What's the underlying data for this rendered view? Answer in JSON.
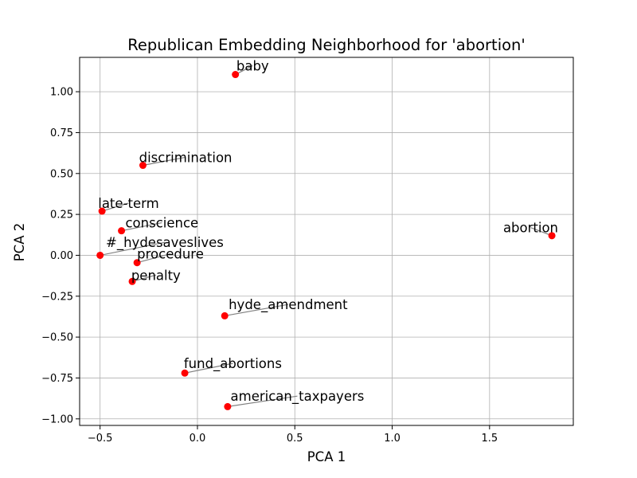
{
  "chart_data": {
    "type": "scatter",
    "title": "Republican Embedding Neighborhood for 'abortion'",
    "xlabel": "PCA 1",
    "ylabel": "PCA 2",
    "xlim": [
      -0.605,
      1.93
    ],
    "ylim": [
      -1.04,
      1.21
    ],
    "xticks": [
      -0.5,
      0.0,
      0.5,
      1.0,
      1.5
    ],
    "yticks": [
      -1.0,
      -0.75,
      -0.5,
      -0.25,
      0.0,
      0.25,
      0.5,
      0.75,
      1.0
    ],
    "xtick_labels": [
      "−0.5",
      "0.0",
      "0.5",
      "1.0",
      "1.5"
    ],
    "ytick_labels": [
      "−1.00",
      "−0.75",
      "−0.50",
      "−0.25",
      "0.00",
      "0.25",
      "0.50",
      "0.75",
      "1.00"
    ],
    "grid": true,
    "point_color": "#ff0000",
    "connector_color": "#808080",
    "points": [
      {
        "label": "baby",
        "x": 0.195,
        "y": 1.105,
        "lx": 0.2,
        "ly": 1.13
      },
      {
        "label": "discrimination",
        "x": -0.28,
        "y": 0.55,
        "lx": -0.3,
        "ly": 0.57
      },
      {
        "label": "late-term",
        "x": -0.49,
        "y": 0.27,
        "lx": -0.51,
        "ly": 0.29
      },
      {
        "label": "conscience",
        "x": -0.39,
        "y": 0.15,
        "lx": -0.37,
        "ly": 0.17
      },
      {
        "label": "#_hydesaveslives",
        "x": -0.5,
        "y": 0.0,
        "lx": -0.47,
        "ly": 0.05
      },
      {
        "label": "procedure",
        "x": -0.31,
        "y": -0.045,
        "lx": -0.31,
        "ly": -0.02
      },
      {
        "label": "penalty",
        "x": -0.335,
        "y": -0.16,
        "lx": -0.34,
        "ly": -0.15
      },
      {
        "label": "abortion",
        "x": 1.82,
        "y": 0.12,
        "lx": 1.57,
        "ly": 0.14
      },
      {
        "label": "hyde_amendment",
        "x": 0.14,
        "y": -0.37,
        "lx": 0.16,
        "ly": -0.33
      },
      {
        "label": "fund_abortions",
        "x": -0.065,
        "y": -0.72,
        "lx": -0.07,
        "ly": -0.69
      },
      {
        "label": "american_taxpayers",
        "x": 0.155,
        "y": -0.925,
        "lx": 0.17,
        "ly": -0.89
      }
    ]
  }
}
